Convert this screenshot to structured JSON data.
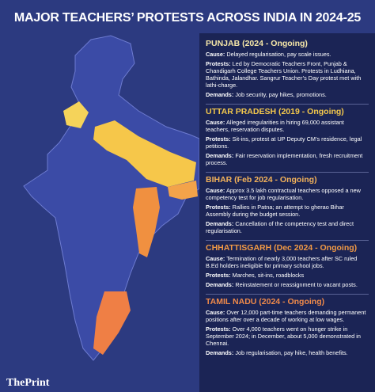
{
  "title": "MAJOR TEACHERS’ PROTESTS ACROSS INDIA IN 2024-25",
  "labels": {
    "cause": "Cause:",
    "protests": "Protests:",
    "demands": "Demands:"
  },
  "states": [
    {
      "heading": "PUNJAB (2024 - Ongoing)",
      "color": "#f6e7a8",
      "cause": "Delayed regularisation, pay scale issues.",
      "protests": "Led by Democratic Teachers Front, Punjab & Chandigarh College Teachers Union. Protests in Ludhiana, Bathinda, Jalandhar. Sangrur Teacher’s Day protest met with lathi-charge.",
      "demands": "Job security, pay hikes, promotions."
    },
    {
      "heading": "UTTAR PRADESH (2019 - Ongoing)",
      "color": "#f5c94c",
      "cause": "Alleged irregularities in hiring 69,000 assistant teachers, reservation disputes.",
      "protests": "Sit-ins, protest at UP Deputy CM’s residence, legal petitions.",
      "demands": "Fair reservation implementation, fresh recruitment process."
    },
    {
      "heading": "BIHAR (Feb 2024 - Ongoing)",
      "color": "#f4b35a",
      "cause": "Approx 3.5 lakh contractual teachers opposed a new competency test for job regularisation.",
      "protests": "Rallies in Patna; an attempt to gherao Bihar Assembly during the budget session.",
      "demands": "Cancellation of the competency test and direct regularisation."
    },
    {
      "heading": "CHHATTISGARH (Dec 2024 - Ongoing)",
      "color": "#f29a45",
      "cause": "Termination of nearly 3,000 teachers after SC ruled B.Ed holders ineligible for primary school jobs.",
      "protests": "Marches, sit-ins, roadblocks",
      "demands": "Reinstatement or reassignment to vacant posts."
    },
    {
      "heading": "TAMIL NADU (2024 - Ongoing)",
      "color": "#f08a4a",
      "cause": "Over 12,000 part-time teachers demanding permanent positions after over a decade of working at low wages.",
      "protests": "Over 4,000 teachers went on hunger strike in September 2024; in December, about 5,000 demonstrated in Chennai.",
      "demands": "Job regularisation, pay hike, health benefits."
    }
  ],
  "source": "ThePrint"
}
